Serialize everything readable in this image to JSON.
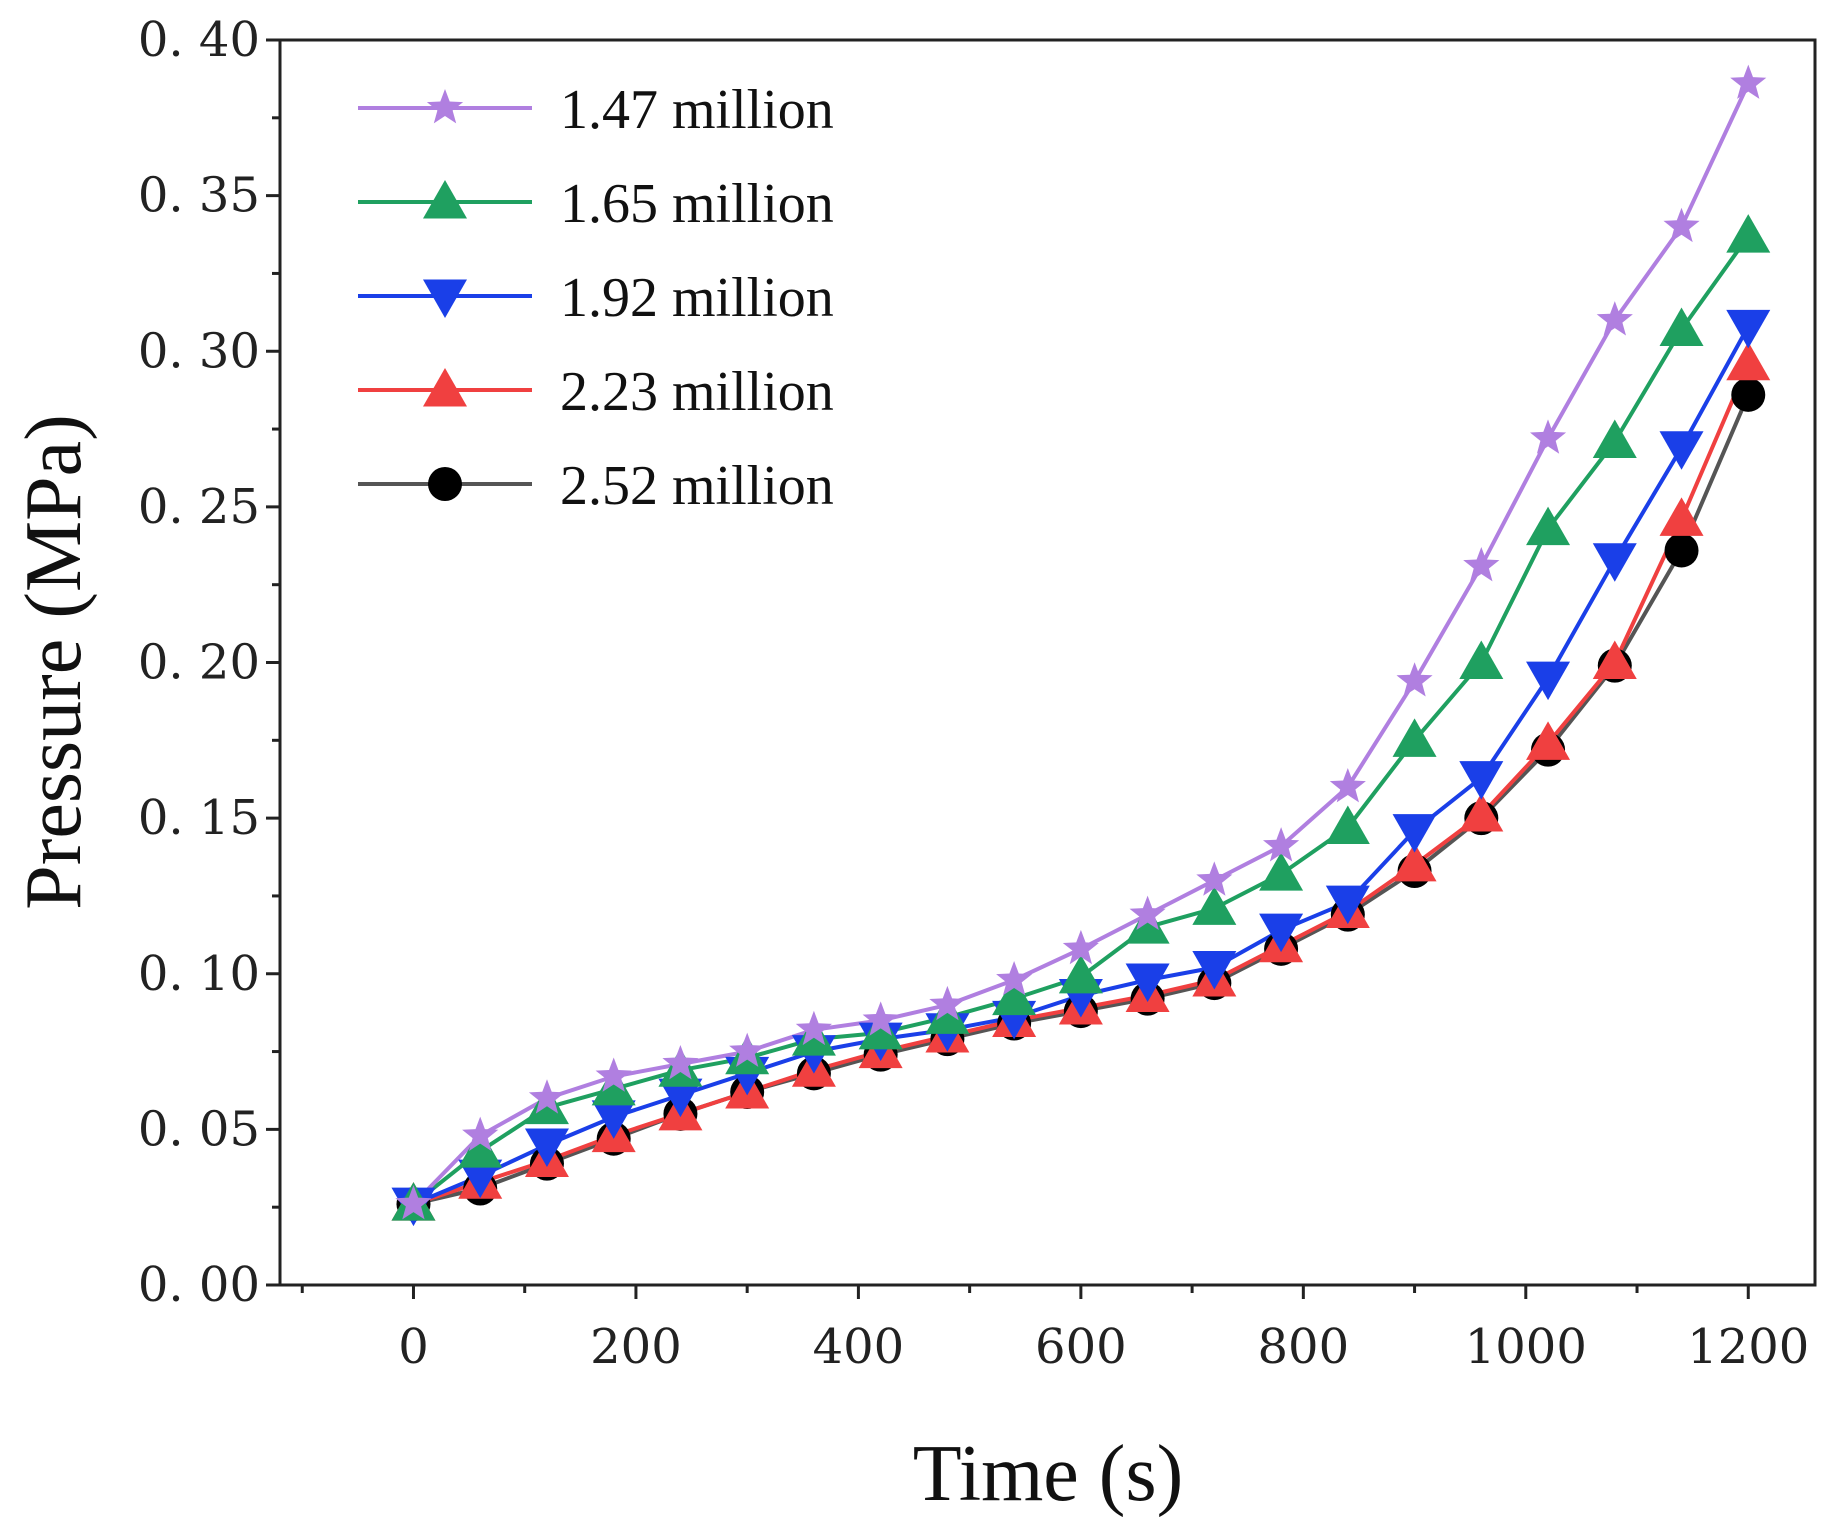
{
  "chart_data": {
    "type": "line",
    "title": "",
    "xlabel": "Time (s)",
    "ylabel": "Pressure (MPa)",
    "xlim": [
      -120,
      1260
    ],
    "ylim": [
      0,
      0.4
    ],
    "xticks": [
      0,
      200,
      400,
      600,
      800,
      1000,
      1200
    ],
    "xtick_labels": [
      "0",
      "200",
      "400",
      "600",
      "800",
      "1000",
      "1200"
    ],
    "yticks": [
      0,
      0.05,
      0.1,
      0.15,
      0.2,
      0.25,
      0.3,
      0.35,
      0.4
    ],
    "ytick_labels": [
      "0. 00",
      "0. 05",
      "0. 10",
      "0. 15",
      "0. 20",
      "0. 25",
      "0. 30",
      "0. 35",
      "0. 40"
    ],
    "grid": false,
    "legend_position": "top-left",
    "x": [
      0,
      60,
      120,
      180,
      240,
      300,
      360,
      420,
      480,
      540,
      600,
      660,
      720,
      780,
      840,
      900,
      960,
      1020,
      1080,
      1140,
      1200
    ],
    "series": [
      {
        "name": "1.47 million",
        "color": "#b07fe0",
        "marker": "star",
        "values": [
          0.026,
          0.048,
          0.06,
          0.067,
          0.071,
          0.075,
          0.082,
          0.085,
          0.09,
          0.098,
          0.108,
          0.119,
          0.13,
          0.141,
          0.16,
          0.194,
          0.231,
          0.272,
          0.31,
          0.34,
          0.386
        ]
      },
      {
        "name": "1.65 million",
        "color": "#1fa060",
        "marker": "triangle-up",
        "values": [
          0.026,
          0.043,
          0.057,
          0.063,
          0.069,
          0.073,
          0.079,
          0.081,
          0.086,
          0.092,
          0.099,
          0.115,
          0.121,
          0.132,
          0.147,
          0.175,
          0.2,
          0.243,
          0.271,
          0.307,
          0.337
        ]
      },
      {
        "name": "1.92 million",
        "color": "#1a3fe8",
        "marker": "triangle-down",
        "values": [
          0.026,
          0.035,
          0.045,
          0.054,
          0.061,
          0.068,
          0.075,
          0.079,
          0.082,
          0.086,
          0.093,
          0.098,
          0.102,
          0.114,
          0.123,
          0.146,
          0.163,
          0.195,
          0.233,
          0.269,
          0.308
        ]
      },
      {
        "name": "2.23 million",
        "color": "#f04040",
        "marker": "triangle-up",
        "values": [
          0.026,
          0.033,
          0.04,
          0.048,
          0.055,
          0.062,
          0.069,
          0.075,
          0.08,
          0.085,
          0.089,
          0.093,
          0.098,
          0.109,
          0.12,
          0.135,
          0.151,
          0.174,
          0.2,
          0.246,
          0.296
        ]
      },
      {
        "name": "2.52 million",
        "color": "#000000",
        "line_color": "#555555",
        "marker": "circle",
        "values": [
          0.026,
          0.031,
          0.039,
          0.047,
          0.055,
          0.062,
          0.068,
          0.074,
          0.079,
          0.084,
          0.088,
          0.092,
          0.097,
          0.108,
          0.119,
          0.133,
          0.15,
          0.172,
          0.199,
          0.236,
          0.286
        ]
      }
    ]
  }
}
